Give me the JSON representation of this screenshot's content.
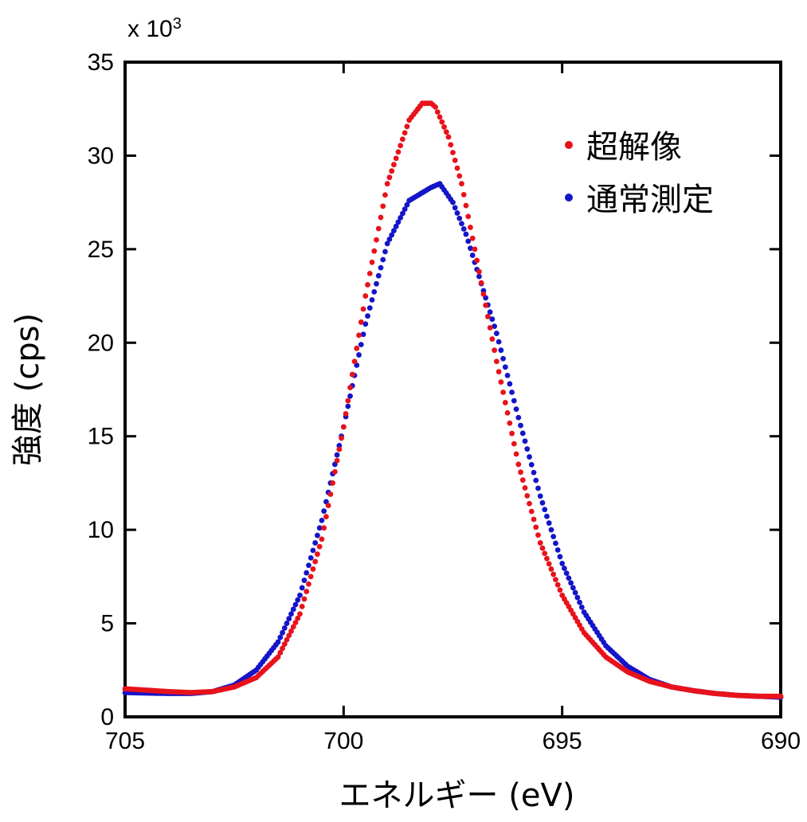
{
  "chart_data": {
    "type": "scatter",
    "xlabel": "エネルギー (eV)",
    "ylabel": "強度 (cps)",
    "y_multiplier": {
      "base": "x 10",
      "exponent": "3"
    },
    "xlim": [
      705,
      690
    ],
    "ylim": [
      0,
      35
    ],
    "x_reversed": true,
    "x_ticks": [
      "705",
      "700",
      "695",
      "690"
    ],
    "y_ticks": [
      "0",
      "5",
      "10",
      "15",
      "20",
      "25",
      "30",
      "35"
    ],
    "grid": false,
    "legend": "top-right",
    "colors": {
      "super_resolution": "#e8121b",
      "normal": "#1414c8"
    },
    "series": [
      {
        "name": "超解像",
        "color": "#e8121b",
        "x": [
          705,
          704,
          703.5,
          703,
          702.5,
          702,
          701.5,
          701,
          700.5,
          700,
          699.5,
          699,
          698.5,
          698.2,
          698.0,
          697.9,
          697.6,
          697.3,
          697,
          696.5,
          696,
          695.5,
          695,
          694.5,
          694,
          693.5,
          693,
          692.5,
          692,
          691.5,
          691,
          690.5,
          690
        ],
        "y": [
          1.5,
          1.35,
          1.3,
          1.35,
          1.6,
          2.1,
          3.2,
          5.5,
          9.5,
          15.5,
          22.5,
          28.5,
          31.9,
          32.8,
          32.8,
          32.6,
          31.0,
          28.5,
          25.0,
          19.0,
          13.5,
          9.3,
          6.5,
          4.5,
          3.2,
          2.4,
          1.9,
          1.6,
          1.4,
          1.25,
          1.15,
          1.1,
          1.1
        ]
      },
      {
        "name": "通常測定",
        "color": "#1414c8",
        "x": [
          705,
          704,
          703.5,
          703,
          702.5,
          702,
          701.5,
          701,
          700.5,
          700,
          699.5,
          699,
          698.5,
          698,
          697.8,
          697.5,
          697.2,
          697,
          696.5,
          696,
          695.5,
          695,
          694.5,
          694,
          693.5,
          693,
          692.5,
          692,
          691.5,
          691,
          690.5,
          690
        ],
        "y": [
          1.3,
          1.25,
          1.25,
          1.35,
          1.7,
          2.5,
          4.0,
          6.5,
          10.5,
          15.5,
          21.0,
          25.3,
          27.6,
          28.3,
          28.5,
          27.5,
          25.8,
          24.3,
          20.5,
          16.0,
          11.8,
          8.2,
          5.6,
          3.8,
          2.7,
          2.0,
          1.6,
          1.4,
          1.25,
          1.15,
          1.1,
          1.05
        ]
      }
    ]
  }
}
